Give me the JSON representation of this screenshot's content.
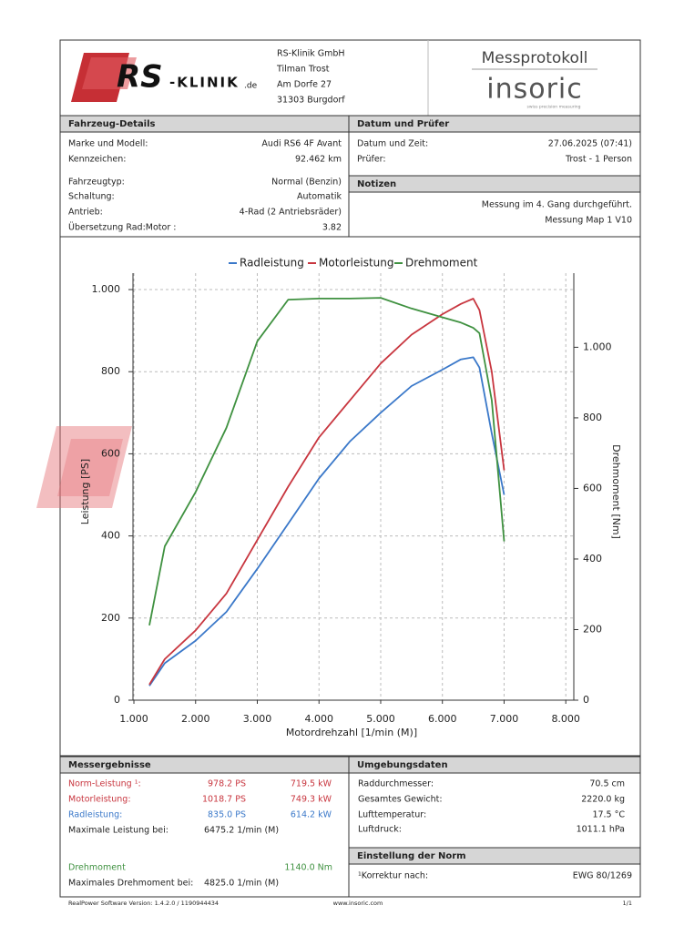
{
  "header": {
    "logo_main": "RS",
    "logo_rest": "-KLINIK",
    "logo_suffix": ".de",
    "address": [
      "RS-Klinik GmbH",
      "Tilman Trost",
      "Am Dorfe 27",
      "31303 Burgdorf"
    ],
    "title": "Messprotokoll",
    "brand": "insoric",
    "tagline": "swiss precision measuring"
  },
  "vehicle": {
    "title": "Fahrzeug-Details",
    "rows": [
      [
        "Marke und Modell:",
        "Audi RS6 4F Avant"
      ],
      [
        "Kennzeichen:",
        "92.462 km"
      ],
      [
        "Fahrzeugtyp:",
        "Normal (Benzin)"
      ],
      [
        "Schaltung:",
        "Automatik"
      ],
      [
        "Antrieb:",
        "4-Rad (2 Antriebsräder)"
      ],
      [
        "Übersetzung Rad:Motor :",
        "3.82"
      ]
    ]
  },
  "inspection": {
    "title": "Datum und Prüfer",
    "rows": [
      [
        "Datum und Zeit:",
        "27.06.2025 (07:41)"
      ],
      [
        "Prüfer:",
        "Trost - 1 Person"
      ]
    ]
  },
  "notes": {
    "title": "Notizen",
    "lines": [
      "Messung im 4. Gang durchgeführt.",
      "Messung Map 1 V10"
    ]
  },
  "chart_data": {
    "type": "line",
    "x_label": "Motordrehzahl [1/min (M)]",
    "y_label": "Leistung [PS]",
    "y2_label": "Drehmoment [Nm]",
    "x": [
      1250,
      1500,
      2000,
      2500,
      3000,
      3500,
      4000,
      4500,
      5000,
      5500,
      6000,
      6300,
      6500,
      6600,
      6800,
      7000
    ],
    "series": [
      {
        "name": "Radleistung",
        "color": "#3a78c9",
        "values": [
          35,
          90,
          145,
          215,
          320,
          430,
          540,
          630,
          700,
          765,
          805,
          830,
          835,
          810,
          650,
          500
        ]
      },
      {
        "name": "Motorleistung",
        "color": "#c8363f",
        "values": [
          38,
          100,
          170,
          260,
          390,
          520,
          640,
          730,
          820,
          890,
          940,
          965,
          978,
          950,
          800,
          560
        ]
      },
      {
        "name": "Drehmoment",
        "color": "#3f9140",
        "axis": "y2",
        "values": [
          212,
          436,
          590,
          772,
          1017,
          1135,
          1138,
          1138,
          1140,
          1110,
          1085,
          1070,
          1055,
          1040,
          850,
          450
        ]
      }
    ],
    "xlim": [
      985,
      8130
    ],
    "xticks": [
      {
        "value": 1000,
        "label": "1.000"
      },
      {
        "value": 2000,
        "label": "2.000"
      },
      {
        "value": 3000,
        "label": "3.000"
      },
      {
        "value": 4000,
        "label": "4.000"
      },
      {
        "value": 5000,
        "label": "5.000"
      },
      {
        "value": 6000,
        "label": "6.000"
      },
      {
        "value": 7000,
        "label": "7.000"
      },
      {
        "value": 8000,
        "label": "8.000"
      }
    ],
    "ylim": [
      0,
      1040
    ],
    "yticks": [
      0,
      200,
      400,
      600,
      800,
      {
        "value": 1000,
        "label": "1.000"
      }
    ],
    "y2lim": [
      0,
      1210
    ],
    "y2ticks": [
      0,
      200,
      400,
      600,
      800,
      {
        "value": 1000,
        "label": "1.000"
      }
    ],
    "grid": true,
    "legend": "top"
  },
  "results": {
    "title": "Messergebnisse",
    "rows": [
      {
        "label": "Norm-Leistung ¹:",
        "ps": "978.2 PS",
        "kw": "719.5 kW",
        "color": "#c8363f"
      },
      {
        "label": "Motorleistung:",
        "ps": "1018.7 PS",
        "kw": "749.3 kW",
        "color": "#c8363f"
      },
      {
        "label": "Radleistung:",
        "ps": "835.0 PS",
        "kw": "614.2 kW",
        "color": "#3a78c9"
      }
    ],
    "max_power_label": "Maximale Leistung bei:",
    "max_power_rpm": "6475.2 1/min (M)",
    "torque_label": "Drehmoment",
    "torque_value": "1140.0 Nm",
    "torque_color": "#3f9140",
    "max_torque_label": "Maximales Drehmoment bei:",
    "max_torque_rpm": "4825.0 1/min (M)"
  },
  "environment": {
    "title": "Umgebungsdaten",
    "rows": [
      [
        "Raddurchmesser:",
        "70.5 cm"
      ],
      [
        "Gesamtes Gewicht:",
        "2220.0 kg"
      ],
      [
        "Lufttemperatur:",
        "17.5 °C"
      ],
      [
        "Luftdruck:",
        "1011.1 hPa"
      ]
    ]
  },
  "norm": {
    "title": "Einstellung der Norm",
    "rows": [
      [
        "¹Korrektur nach:",
        "EWG 80/1269"
      ]
    ]
  },
  "footer": {
    "software": "RealPower Software Version: 1.4.2.0 / 1190944434",
    "website": "www.insoric.com",
    "page": "1/1"
  }
}
